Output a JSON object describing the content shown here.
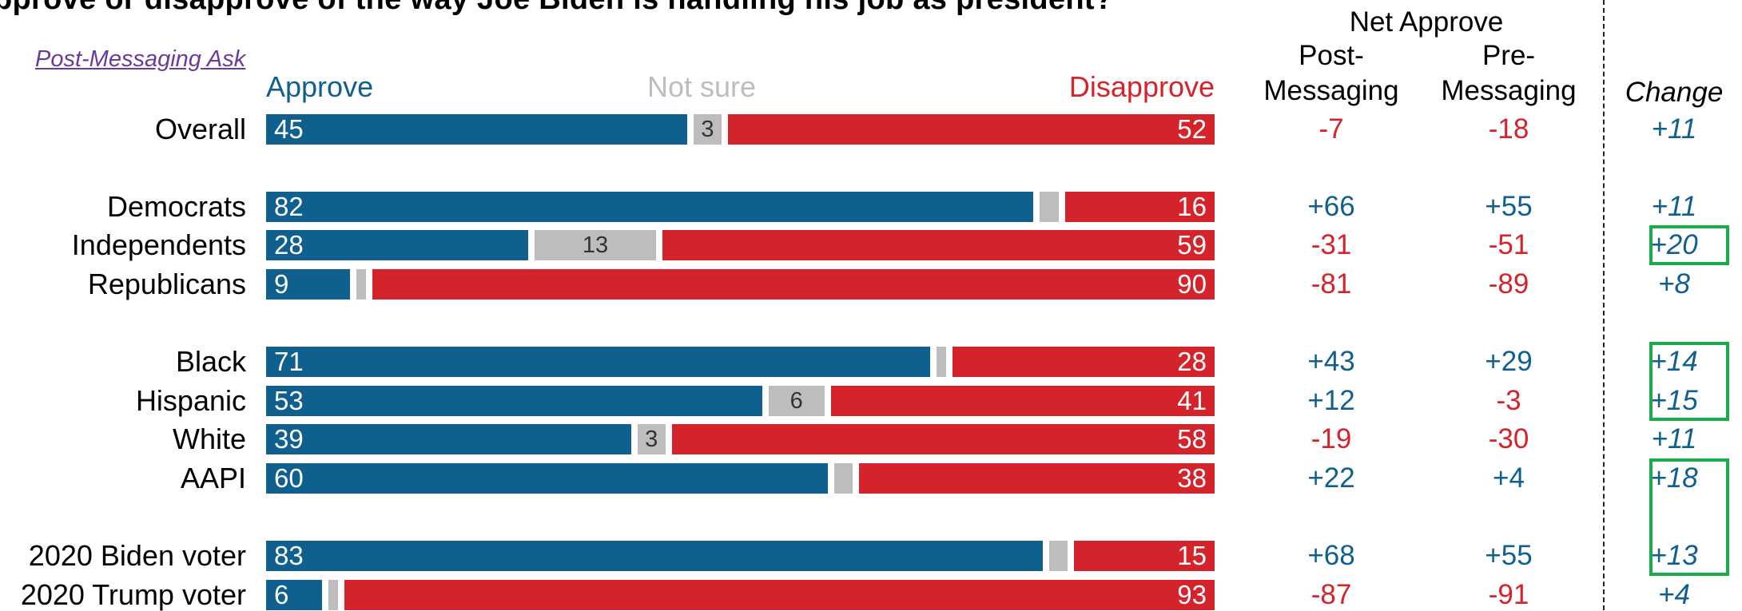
{
  "question": "pprove or disapprove of the way Joe Biden is handling his job as president?",
  "ask_label": "Post-Messaging Ask",
  "legend": {
    "approve": "Approve",
    "not_sure": "Not sure",
    "disapprove": "Disapprove"
  },
  "headers": {
    "net_approve": "Net Approve",
    "post_line1": "Post-",
    "post_line2": "Messaging",
    "pre_line1": "Pre-",
    "pre_line2": "Messaging",
    "change": "Change"
  },
  "colors": {
    "approve": "#0f5f8f",
    "not_sure": "#bdbdbd",
    "disapprove": "#d4232b",
    "highlight": "#1aab4a"
  },
  "chart_data": {
    "type": "bar",
    "stacked": true,
    "orientation": "horizontal",
    "title": "pprove or disapprove of the way Joe Biden is handling his job as president?",
    "categories": [
      "Overall",
      "Democrats",
      "Independents",
      "Republicans",
      "Black",
      "Hispanic",
      "White",
      "AAPI",
      "2020 Biden voter",
      "2020 Trump voter"
    ],
    "series": [
      {
        "name": "Approve",
        "values": [
          45,
          82,
          28,
          9,
          71,
          53,
          39,
          60,
          83,
          6
        ]
      },
      {
        "name": "Not sure",
        "values": [
          3,
          2,
          13,
          1,
          1,
          6,
          3,
          2,
          2,
          1
        ]
      },
      {
        "name": "Disapprove",
        "values": [
          52,
          16,
          59,
          90,
          28,
          41,
          58,
          38,
          15,
          93
        ]
      }
    ],
    "not_sure_labels": [
      "3",
      "",
      "13",
      "",
      "",
      "6",
      "3",
      "",
      "",
      ""
    ],
    "net_approve_post": [
      "-7",
      "+66",
      "-31",
      "-81",
      "+43",
      "+12",
      "-19",
      "+22",
      "+68",
      "-87"
    ],
    "net_approve_pre": [
      "-18",
      "+55",
      "-51",
      "-89",
      "+29",
      "-3",
      "-30",
      "+4",
      "+55",
      "-91"
    ],
    "change": [
      "+11",
      "+11",
      "+20",
      "+8",
      "+14",
      "+15",
      "+11",
      "+18",
      "+13",
      "+4"
    ],
    "highlighted_change": [
      false,
      false,
      true,
      false,
      true,
      true,
      false,
      true,
      true,
      false
    ],
    "xlim": [
      0,
      100
    ]
  }
}
